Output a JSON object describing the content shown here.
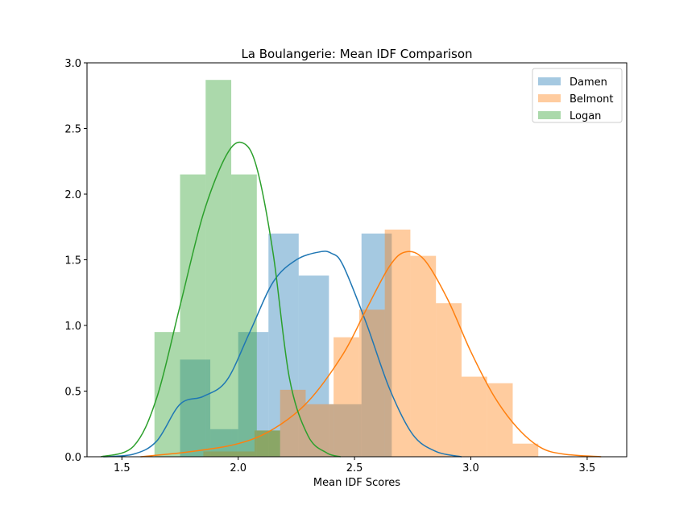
{
  "chart_data": {
    "type": "histogram+kde",
    "title": "La Boulangerie: Mean IDF Comparison",
    "xlabel": "Mean IDF Scores",
    "ylabel": "",
    "xlim": [
      1.35,
      3.67
    ],
    "ylim": [
      0,
      3.0
    ],
    "xticks": [
      "1.5",
      "2.0",
      "2.5",
      "3.0",
      "3.5"
    ],
    "yticks": [
      "0.0",
      "0.5",
      "1.0",
      "1.5",
      "2.0",
      "2.5",
      "3.0"
    ],
    "legend_position": "top-right",
    "grid": false,
    "series": [
      {
        "name": "Damen",
        "color": "#1f77b4",
        "hist_edges": [
          1.75,
          1.88,
          2.0,
          2.13,
          2.26,
          2.39,
          2.53,
          2.66
        ],
        "hist_values": [
          0.74,
          0.21,
          0.95,
          1.7,
          1.38,
          0.4,
          1.7
        ],
        "kde_x": [
          1.42,
          1.55,
          1.65,
          1.75,
          1.85,
          1.95,
          2.05,
          2.15,
          2.25,
          2.35,
          2.4,
          2.45,
          2.55,
          2.65,
          2.75,
          2.85,
          2.96
        ],
        "kde_y": [
          0.0,
          0.02,
          0.12,
          0.4,
          0.46,
          0.58,
          0.95,
          1.33,
          1.5,
          1.56,
          1.55,
          1.46,
          1.02,
          0.52,
          0.17,
          0.04,
          0.0
        ]
      },
      {
        "name": "Belmont",
        "color": "#ff7f0e",
        "hist_edges": [
          1.85,
          2.07,
          2.18,
          2.29,
          2.41,
          2.52,
          2.63,
          2.74,
          2.85,
          2.96,
          3.07,
          3.18,
          3.29
        ],
        "hist_values": [
          0.04,
          0.2,
          0.51,
          0.4,
          0.91,
          1.12,
          1.73,
          1.53,
          1.17,
          0.61,
          0.56,
          0.1
        ],
        "kde_x": [
          1.58,
          1.8,
          2.0,
          2.15,
          2.3,
          2.45,
          2.55,
          2.65,
          2.72,
          2.8,
          2.9,
          3.0,
          3.1,
          3.2,
          3.3,
          3.4,
          3.56
        ],
        "kde_y": [
          0.0,
          0.04,
          0.1,
          0.21,
          0.42,
          0.78,
          1.12,
          1.45,
          1.56,
          1.5,
          1.2,
          0.8,
          0.46,
          0.22,
          0.07,
          0.02,
          0.0
        ]
      },
      {
        "name": "Logan",
        "color": "#2ca02c",
        "hist_edges": [
          1.64,
          1.75,
          1.86,
          1.97,
          2.08,
          2.18
        ],
        "hist_values": [
          0.95,
          2.15,
          2.87,
          2.15,
          0.2
        ],
        "kde_x": [
          1.41,
          1.55,
          1.65,
          1.75,
          1.85,
          1.95,
          2.02,
          2.08,
          2.15,
          2.22,
          2.3,
          2.38,
          2.44
        ],
        "kde_y": [
          0.0,
          0.08,
          0.45,
          1.15,
          1.85,
          2.3,
          2.39,
          2.2,
          1.55,
          0.6,
          0.16,
          0.03,
          0.0
        ]
      }
    ]
  }
}
